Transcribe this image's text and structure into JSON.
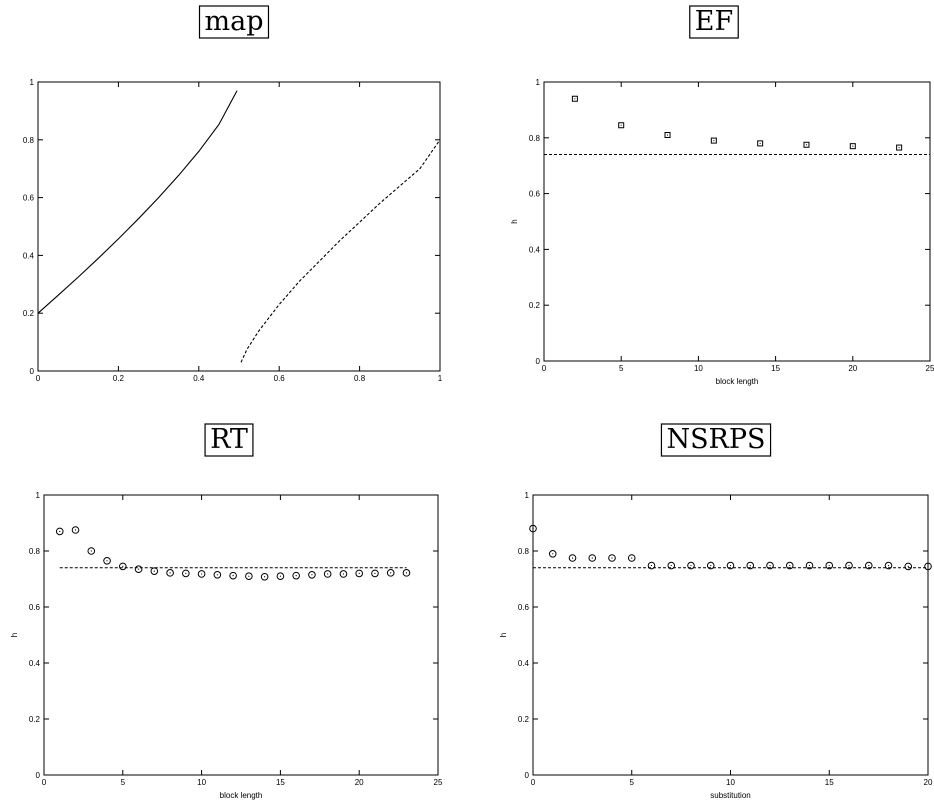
{
  "chart_data": [
    {
      "type": "line",
      "title": "map",
      "xlabel": "",
      "ylabel": "",
      "xlim": [
        0,
        1
      ],
      "ylim": [
        0,
        1
      ],
      "x_ticks": [
        "0",
        "0.2",
        "0.4",
        "0.6",
        "0.8",
        "1"
      ],
      "y_ticks": [
        "0",
        "0.2",
        "0.4",
        "0.6",
        "0.8",
        "1"
      ],
      "series": [
        {
          "style": "solid",
          "x": [
            0,
            0.05,
            0.1,
            0.15,
            0.2,
            0.25,
            0.3,
            0.35,
            0.4,
            0.45,
            0.495
          ],
          "y": [
            0.2,
            0.262,
            0.325,
            0.39,
            0.457,
            0.527,
            0.6,
            0.677,
            0.76,
            0.853,
            0.97
          ]
        },
        {
          "style": "dashed",
          "x": [
            0.505,
            0.52,
            0.55,
            0.6,
            0.65,
            0.7,
            0.75,
            0.8,
            0.85,
            0.9,
            0.95,
            1.0
          ],
          "y": [
            0.03,
            0.075,
            0.14,
            0.23,
            0.31,
            0.38,
            0.45,
            0.515,
            0.58,
            0.64,
            0.7,
            0.8
          ]
        }
      ]
    },
    {
      "type": "scatter",
      "title": "EF",
      "xlabel": "block length",
      "ylabel": "h",
      "xlim": [
        0,
        25
      ],
      "ylim": [
        0,
        1
      ],
      "x_ticks": [
        "0",
        "5",
        "10",
        "15",
        "20",
        "25"
      ],
      "y_ticks": [
        "0",
        "0.2",
        "0.4",
        "0.6",
        "0.8",
        "1"
      ],
      "marker": "square",
      "x": [
        2,
        5,
        8,
        11,
        14,
        17,
        20,
        23
      ],
      "y": [
        0.94,
        0.845,
        0.81,
        0.79,
        0.78,
        0.775,
        0.77,
        0.765
      ],
      "reference_line": 0.74
    },
    {
      "type": "scatter",
      "title": "RT",
      "xlabel": "block length",
      "ylabel": "h",
      "xlim": [
        0,
        25
      ],
      "ylim": [
        0,
        1
      ],
      "x_ticks": [
        "0",
        "5",
        "10",
        "15",
        "20",
        "25"
      ],
      "y_ticks": [
        "0",
        "0.2",
        "0.4",
        "0.6",
        "0.8",
        "1"
      ],
      "marker": "circle",
      "x": [
        1,
        2,
        3,
        4,
        5,
        6,
        7,
        8,
        9,
        10,
        11,
        12,
        13,
        14,
        15,
        16,
        17,
        18,
        19,
        20,
        21,
        22,
        23
      ],
      "y": [
        0.87,
        0.875,
        0.8,
        0.765,
        0.745,
        0.735,
        0.728,
        0.722,
        0.72,
        0.718,
        0.715,
        0.712,
        0.71,
        0.708,
        0.71,
        0.712,
        0.715,
        0.718,
        0.718,
        0.72,
        0.72,
        0.722,
        0.722
      ],
      "reference_line": 0.74,
      "reference_x_range": [
        1,
        23
      ]
    },
    {
      "type": "scatter",
      "title": "NSRPS",
      "xlabel": "substitution",
      "ylabel": "h",
      "xlim": [
        0,
        20
      ],
      "ylim": [
        0,
        1
      ],
      "x_ticks": [
        "0",
        "5",
        "10",
        "15",
        "20"
      ],
      "y_ticks": [
        "0",
        "0.2",
        "0.4",
        "0.6",
        "0.8",
        "1"
      ],
      "marker": "circle",
      "x": [
        0,
        1,
        2,
        3,
        4,
        5,
        6,
        7,
        8,
        9,
        10,
        11,
        12,
        13,
        14,
        15,
        16,
        17,
        18,
        19,
        20
      ],
      "y": [
        0.88,
        0.79,
        0.775,
        0.775,
        0.775,
        0.775,
        0.748,
        0.748,
        0.748,
        0.748,
        0.748,
        0.748,
        0.748,
        0.748,
        0.748,
        0.748,
        0.748,
        0.748,
        0.748,
        0.745,
        0.745
      ],
      "reference_line": 0.74
    }
  ]
}
